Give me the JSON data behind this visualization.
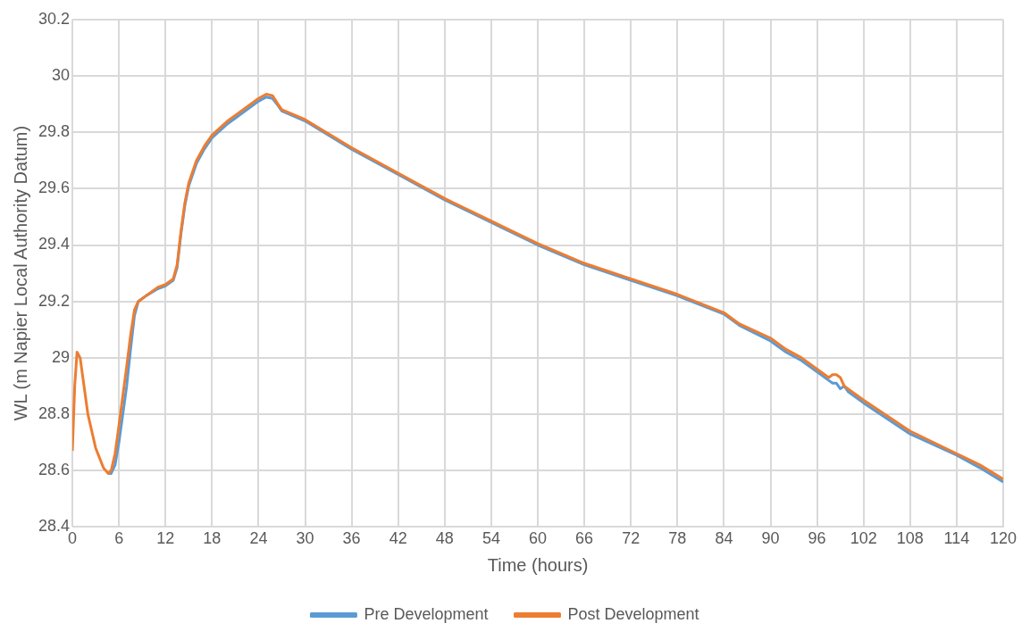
{
  "chart_data": {
    "type": "line",
    "xlabel": "Time (hours)",
    "ylabel": "WL (m Napier Local Authority Datum)",
    "xlim": [
      0,
      120
    ],
    "xticks": [
      0,
      6,
      12,
      18,
      24,
      30,
      36,
      42,
      48,
      54,
      60,
      66,
      72,
      78,
      84,
      90,
      96,
      102,
      108,
      114,
      120
    ],
    "ylim": [
      28.4,
      30.2
    ],
    "yticks": [
      28.4,
      28.6,
      28.8,
      29,
      29.2,
      29.4,
      29.6,
      29.8,
      30,
      30.2
    ],
    "grid": true,
    "legend": "bottom",
    "marker": "none",
    "line_style": "solid",
    "series": [
      {
        "name": "Pre Development",
        "color": "#5b9bd5",
        "x": [
          4.6,
          5,
          5.5,
          6,
          7,
          7.5,
          8,
          8.5,
          9.5,
          11,
          12,
          13,
          13.5,
          14,
          14.5,
          15,
          16,
          17,
          18,
          20,
          22,
          24,
          25,
          25.8,
          26.5,
          27,
          30,
          36,
          42,
          48,
          54,
          60,
          66,
          72,
          78,
          84,
          86,
          90,
          92,
          94,
          96,
          97.5,
          98,
          98.5,
          99,
          99.5,
          100,
          102,
          108,
          114,
          117,
          120
        ],
        "values": [
          28.59,
          28.59,
          28.62,
          28.7,
          28.9,
          29.03,
          29.15,
          29.2,
          29.22,
          29.245,
          29.255,
          29.275,
          29.32,
          29.44,
          29.54,
          29.61,
          29.69,
          29.74,
          29.78,
          29.83,
          29.87,
          29.91,
          29.925,
          29.92,
          29.895,
          29.875,
          29.84,
          29.74,
          29.65,
          29.56,
          29.48,
          29.4,
          29.33,
          29.275,
          29.22,
          29.155,
          29.115,
          29.06,
          29.02,
          28.99,
          28.95,
          28.92,
          28.91,
          28.91,
          28.89,
          28.9,
          28.88,
          28.84,
          28.73,
          28.655,
          28.61,
          28.56
        ]
      },
      {
        "name": "Post Development",
        "color": "#ed7d31",
        "x": [
          0,
          0.3,
          0.6,
          1,
          1.5,
          2,
          3,
          4,
          4.6,
          5,
          5.5,
          6,
          7,
          7.5,
          8,
          8.5,
          9.5,
          11,
          12,
          13,
          13.5,
          14,
          14.5,
          15,
          16,
          17,
          18,
          20,
          22,
          24,
          25,
          25.8,
          26.5,
          27,
          30,
          36,
          42,
          48,
          54,
          60,
          66,
          72,
          78,
          84,
          86,
          90,
          92,
          94,
          96,
          97.5,
          98,
          98.5,
          99,
          99.5,
          100,
          102,
          108,
          114,
          117,
          120
        ],
        "values": [
          28.67,
          28.9,
          29.02,
          29,
          28.9,
          28.8,
          28.68,
          28.61,
          28.59,
          28.6,
          28.66,
          28.76,
          28.97,
          29.08,
          29.17,
          29.2,
          29.22,
          29.25,
          29.26,
          29.28,
          29.33,
          29.45,
          29.55,
          29.62,
          29.7,
          29.75,
          29.79,
          29.84,
          29.88,
          29.92,
          29.935,
          29.93,
          29.9,
          29.88,
          29.845,
          29.745,
          29.655,
          29.565,
          29.485,
          29.405,
          29.335,
          29.28,
          29.225,
          29.16,
          29.12,
          29.07,
          29.03,
          29,
          28.96,
          28.93,
          28.94,
          28.94,
          28.93,
          28.9,
          28.89,
          28.85,
          28.74,
          28.66,
          28.62,
          28.57
        ]
      }
    ]
  }
}
